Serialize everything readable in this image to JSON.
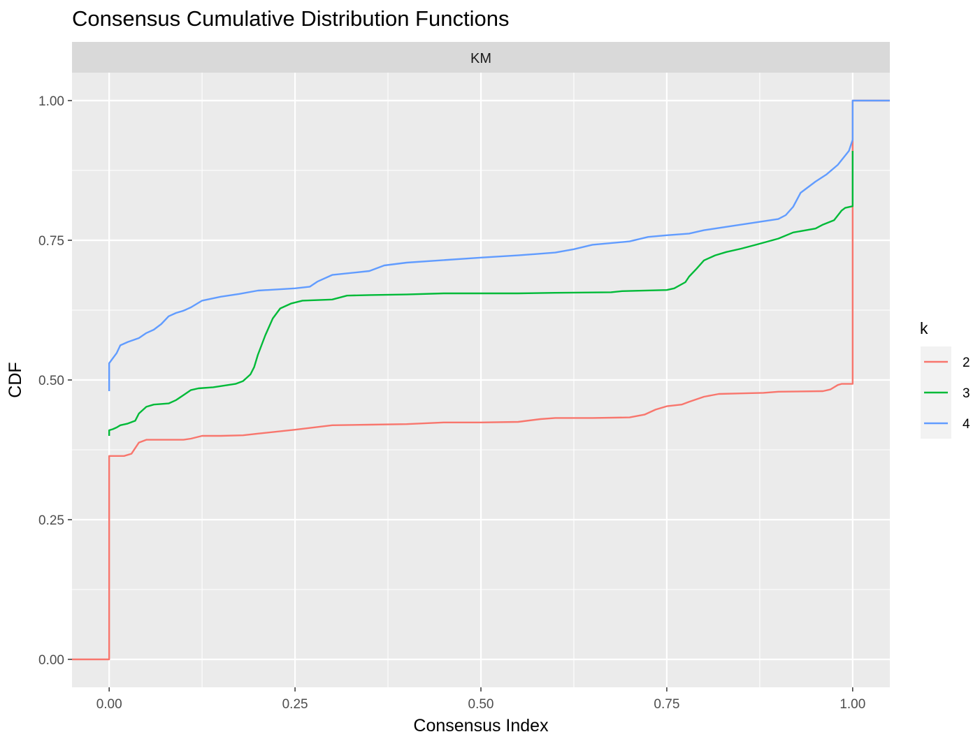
{
  "chart_data": {
    "type": "line",
    "title": "Consensus Cumulative Distribution Functions",
    "facet_label": "KM",
    "xlabel": "Consensus Index",
    "ylabel": "CDF",
    "xlim": [
      -0.05,
      1.05
    ],
    "ylim": [
      -0.05,
      1.05
    ],
    "x_ticks": [
      0,
      0.25,
      0.5,
      0.75,
      1
    ],
    "x_tick_labels": [
      "0.00",
      "0.25",
      "0.50",
      "0.75",
      "1.00"
    ],
    "y_ticks": [
      0,
      0.25,
      0.5,
      0.75,
      1
    ],
    "y_tick_labels": [
      "0.00",
      "0.25",
      "0.50",
      "0.75",
      "1.00"
    ],
    "grid": true,
    "legend": {
      "title": "k",
      "position": "right"
    },
    "series": [
      {
        "name": "2",
        "color": "#F8766D",
        "points": [
          [
            -0.05,
            0
          ],
          [
            0,
            0
          ],
          [
            0,
            0.364
          ],
          [
            0.02,
            0.364
          ],
          [
            0.03,
            0.368
          ],
          [
            0.035,
            0.378
          ],
          [
            0.04,
            0.388
          ],
          [
            0.05,
            0.393
          ],
          [
            0.07,
            0.393
          ],
          [
            0.1,
            0.393
          ],
          [
            0.11,
            0.395
          ],
          [
            0.125,
            0.4
          ],
          [
            0.15,
            0.4
          ],
          [
            0.18,
            0.401
          ],
          [
            0.2,
            0.404
          ],
          [
            0.25,
            0.411
          ],
          [
            0.3,
            0.419
          ],
          [
            0.35,
            0.42
          ],
          [
            0.4,
            0.421
          ],
          [
            0.45,
            0.424
          ],
          [
            0.5,
            0.424
          ],
          [
            0.55,
            0.425
          ],
          [
            0.58,
            0.43
          ],
          [
            0.6,
            0.432
          ],
          [
            0.65,
            0.432
          ],
          [
            0.7,
            0.433
          ],
          [
            0.72,
            0.438
          ],
          [
            0.735,
            0.447
          ],
          [
            0.75,
            0.453
          ],
          [
            0.77,
            0.456
          ],
          [
            0.78,
            0.461
          ],
          [
            0.8,
            0.47
          ],
          [
            0.82,
            0.475
          ],
          [
            0.85,
            0.476
          ],
          [
            0.88,
            0.477
          ],
          [
            0.9,
            0.479
          ],
          [
            0.96,
            0.48
          ],
          [
            0.97,
            0.483
          ],
          [
            0.98,
            0.491
          ],
          [
            0.985,
            0.493
          ],
          [
            1,
            0.493
          ],
          [
            1,
            0.75
          ],
          [
            1,
            0.84
          ],
          [
            1,
            1
          ],
          [
            1.05,
            1
          ]
        ]
      },
      {
        "name": "3",
        "color": "#00BA38",
        "points": [
          [
            0,
            0.4
          ],
          [
            0,
            0.41
          ],
          [
            0.005,
            0.412
          ],
          [
            0.01,
            0.415
          ],
          [
            0.015,
            0.419
          ],
          [
            0.025,
            0.422
          ],
          [
            0.035,
            0.427
          ],
          [
            0.04,
            0.44
          ],
          [
            0.05,
            0.452
          ],
          [
            0.06,
            0.456
          ],
          [
            0.08,
            0.458
          ],
          [
            0.09,
            0.464
          ],
          [
            0.1,
            0.473
          ],
          [
            0.11,
            0.482
          ],
          [
            0.12,
            0.485
          ],
          [
            0.14,
            0.487
          ],
          [
            0.17,
            0.493
          ],
          [
            0.18,
            0.498
          ],
          [
            0.19,
            0.51
          ],
          [
            0.195,
            0.523
          ],
          [
            0.2,
            0.545
          ],
          [
            0.21,
            0.58
          ],
          [
            0.22,
            0.61
          ],
          [
            0.23,
            0.628
          ],
          [
            0.245,
            0.637
          ],
          [
            0.26,
            0.642
          ],
          [
            0.3,
            0.644
          ],
          [
            0.32,
            0.651
          ],
          [
            0.35,
            0.652
          ],
          [
            0.4,
            0.653
          ],
          [
            0.45,
            0.655
          ],
          [
            0.55,
            0.655
          ],
          [
            0.6,
            0.656
          ],
          [
            0.675,
            0.657
          ],
          [
            0.69,
            0.659
          ],
          [
            0.75,
            0.661
          ],
          [
            0.76,
            0.664
          ],
          [
            0.775,
            0.675
          ],
          [
            0.78,
            0.685
          ],
          [
            0.79,
            0.699
          ],
          [
            0.8,
            0.714
          ],
          [
            0.815,
            0.723
          ],
          [
            0.83,
            0.729
          ],
          [
            0.85,
            0.735
          ],
          [
            0.87,
            0.742
          ],
          [
            0.9,
            0.753
          ],
          [
            0.92,
            0.764
          ],
          [
            0.95,
            0.771
          ],
          [
            0.96,
            0.778
          ],
          [
            0.975,
            0.786
          ],
          [
            0.985,
            0.803
          ],
          [
            0.99,
            0.808
          ],
          [
            1,
            0.811
          ],
          [
            1,
            0.84
          ],
          [
            1,
            0.91
          ]
        ]
      },
      {
        "name": "4",
        "color": "#619CFF",
        "points": [
          [
            0,
            0.48
          ],
          [
            0,
            0.53
          ],
          [
            0.01,
            0.548
          ],
          [
            0.015,
            0.562
          ],
          [
            0.025,
            0.568
          ],
          [
            0.04,
            0.575
          ],
          [
            0.05,
            0.584
          ],
          [
            0.06,
            0.59
          ],
          [
            0.07,
            0.6
          ],
          [
            0.08,
            0.614
          ],
          [
            0.09,
            0.62
          ],
          [
            0.1,
            0.624
          ],
          [
            0.11,
            0.63
          ],
          [
            0.125,
            0.642
          ],
          [
            0.15,
            0.649
          ],
          [
            0.175,
            0.654
          ],
          [
            0.2,
            0.66
          ],
          [
            0.25,
            0.664
          ],
          [
            0.27,
            0.667
          ],
          [
            0.28,
            0.676
          ],
          [
            0.3,
            0.688
          ],
          [
            0.35,
            0.695
          ],
          [
            0.37,
            0.705
          ],
          [
            0.4,
            0.71
          ],
          [
            0.5,
            0.719
          ],
          [
            0.55,
            0.723
          ],
          [
            0.6,
            0.728
          ],
          [
            0.625,
            0.734
          ],
          [
            0.65,
            0.742
          ],
          [
            0.7,
            0.748
          ],
          [
            0.725,
            0.756
          ],
          [
            0.75,
            0.759
          ],
          [
            0.78,
            0.762
          ],
          [
            0.8,
            0.768
          ],
          [
            0.85,
            0.778
          ],
          [
            0.9,
            0.788
          ],
          [
            0.91,
            0.795
          ],
          [
            0.92,
            0.81
          ],
          [
            0.93,
            0.835
          ],
          [
            0.95,
            0.855
          ],
          [
            0.965,
            0.868
          ],
          [
            0.98,
            0.885
          ],
          [
            0.995,
            0.91
          ],
          [
            1,
            0.93
          ],
          [
            1,
            0.935
          ],
          [
            1,
            1
          ],
          [
            1.05,
            1
          ]
        ]
      }
    ]
  }
}
